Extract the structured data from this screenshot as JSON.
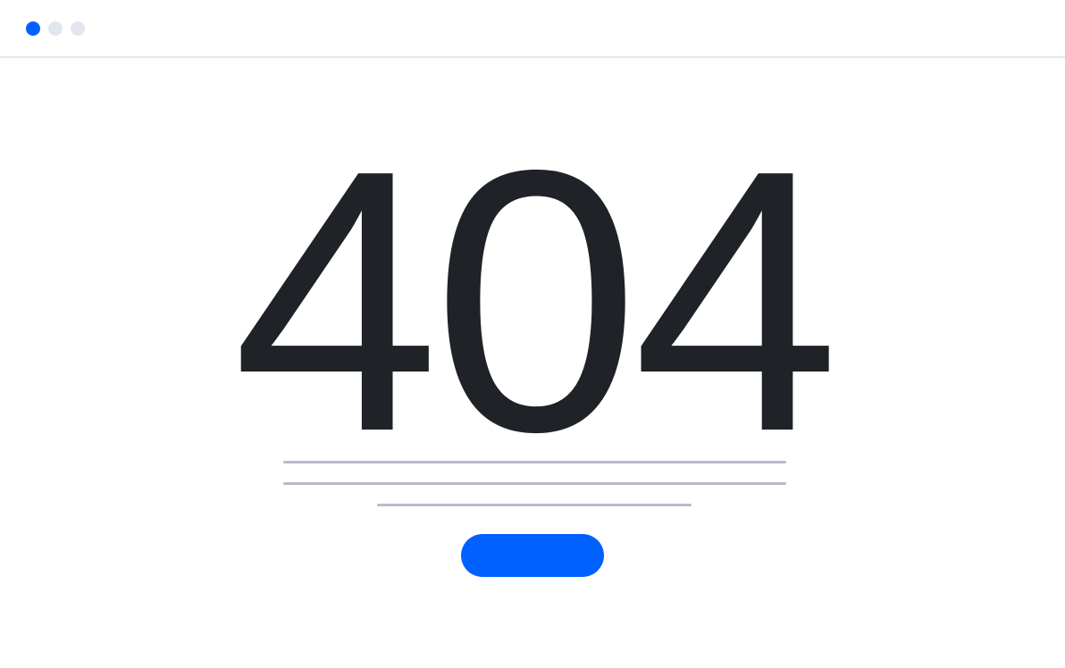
{
  "window": {
    "controls": [
      {
        "name": "window-dot-active",
        "color": "#0061ff"
      },
      {
        "name": "window-dot",
        "color": "#e1e6ef"
      },
      {
        "name": "window-dot",
        "color": "#e1e6ef"
      }
    ],
    "border_color": "#e3e7ef"
  },
  "error": {
    "code": "404",
    "color": "#1f2226"
  },
  "placeholder_text_lines": {
    "color": "#b6bcca",
    "count": 3
  },
  "cta": {
    "label": "",
    "color": "#0061ff"
  }
}
